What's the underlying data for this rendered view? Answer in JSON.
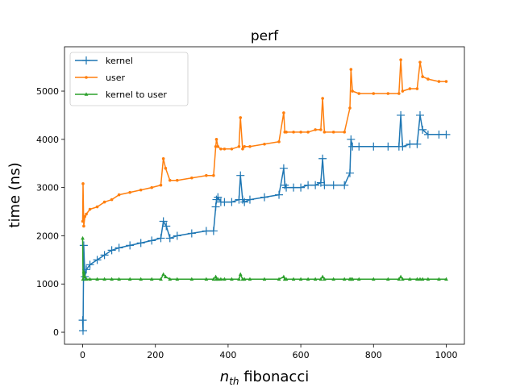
{
  "chart_data": {
    "type": "line",
    "title": "perf",
    "xlabel": {
      "main": "n",
      "sub": "th",
      "rest": " fibonacci"
    },
    "ylabel": "time (ns)",
    "xlim": [
      -50,
      1050
    ],
    "ylim": [
      -250,
      5920
    ],
    "xticks": [
      0,
      200,
      400,
      600,
      800,
      1000
    ],
    "yticks": [
      0,
      1000,
      2000,
      3000,
      4000,
      5000
    ],
    "grid": false,
    "legend_position": "top-left",
    "series": [
      {
        "name": "kernel",
        "color": "#1f77b4",
        "marker": "plus",
        "x": [
          0,
          1,
          3,
          6,
          10,
          20,
          40,
          60,
          80,
          100,
          130,
          160,
          190,
          215,
          222,
          230,
          240,
          260,
          300,
          340,
          360,
          366,
          368,
          372,
          380,
          390,
          410,
          430,
          434,
          440,
          445,
          460,
          500,
          540,
          553,
          556,
          560,
          580,
          600,
          620,
          640,
          655,
          660,
          665,
          690,
          720,
          735,
          738,
          742,
          760,
          800,
          840,
          870,
          875,
          880,
          900,
          920,
          928,
          935,
          950,
          980,
          1000
        ],
        "y": [
          250,
          30,
          1800,
          1150,
          1300,
          1400,
          1500,
          1600,
          1700,
          1750,
          1800,
          1850,
          1900,
          1950,
          2300,
          2200,
          1950,
          2000,
          2050,
          2100,
          2100,
          2600,
          2750,
          2800,
          2700,
          2700,
          2700,
          2750,
          3250,
          2750,
          2700,
          2750,
          2800,
          2850,
          3400,
          3050,
          3000,
          3000,
          3000,
          3050,
          3050,
          3100,
          3600,
          3050,
          3050,
          3050,
          3300,
          4000,
          3850,
          3850,
          3850,
          3850,
          3850,
          4500,
          3850,
          3900,
          3900,
          4500,
          4200,
          4100,
          4100,
          4100
        ]
      },
      {
        "name": "user",
        "color": "#ff7f0e",
        "marker": "dot",
        "x": [
          0,
          1,
          3,
          6,
          10,
          20,
          40,
          60,
          80,
          100,
          130,
          160,
          190,
          215,
          222,
          228,
          240,
          260,
          300,
          340,
          360,
          366,
          368,
          372,
          380,
          390,
          410,
          430,
          434,
          440,
          445,
          460,
          500,
          540,
          553,
          556,
          560,
          580,
          600,
          620,
          640,
          655,
          660,
          665,
          690,
          720,
          735,
          738,
          742,
          760,
          800,
          840,
          870,
          875,
          880,
          900,
          920,
          928,
          935,
          950,
          980,
          1000
        ],
        "y": [
          2300,
          3080,
          2200,
          2400,
          2450,
          2550,
          2600,
          2700,
          2750,
          2850,
          2900,
          2950,
          3000,
          3050,
          3600,
          3400,
          3150,
          3150,
          3200,
          3250,
          3250,
          3850,
          4000,
          3850,
          3800,
          3800,
          3800,
          3850,
          4450,
          3800,
          3850,
          3850,
          3900,
          3950,
          4550,
          4150,
          4150,
          4150,
          4150,
          4150,
          4200,
          4200,
          4850,
          4150,
          4150,
          4150,
          4650,
          5450,
          5000,
          4950,
          4950,
          4950,
          4950,
          5650,
          5000,
          5050,
          5050,
          5600,
          5300,
          5250,
          5200,
          5200
        ]
      },
      {
        "name": "kernel to user",
        "color": "#2ca02c",
        "marker": "triangle",
        "x": [
          0,
          1,
          3,
          6,
          10,
          20,
          40,
          60,
          80,
          100,
          130,
          160,
          190,
          215,
          222,
          228,
          240,
          260,
          300,
          340,
          360,
          366,
          368,
          372,
          380,
          390,
          410,
          430,
          434,
          440,
          445,
          460,
          500,
          540,
          553,
          556,
          560,
          580,
          600,
          620,
          640,
          655,
          660,
          665,
          690,
          720,
          735,
          738,
          742,
          760,
          800,
          840,
          870,
          875,
          880,
          900,
          920,
          928,
          935,
          950,
          980,
          1000
        ],
        "y": [
          1950,
          1100,
          1250,
          1150,
          1100,
          1100,
          1100,
          1100,
          1100,
          1100,
          1100,
          1100,
          1100,
          1100,
          1200,
          1150,
          1100,
          1100,
          1100,
          1100,
          1100,
          1150,
          1100,
          1100,
          1100,
          1100,
          1100,
          1100,
          1200,
          1100,
          1100,
          1100,
          1100,
          1100,
          1150,
          1100,
          1100,
          1100,
          1100,
          1100,
          1100,
          1100,
          1150,
          1100,
          1100,
          1100,
          1100,
          1100,
          1100,
          1100,
          1100,
          1100,
          1100,
          1150,
          1100,
          1100,
          1100,
          1100,
          1100,
          1100,
          1100,
          1100
        ]
      }
    ]
  }
}
